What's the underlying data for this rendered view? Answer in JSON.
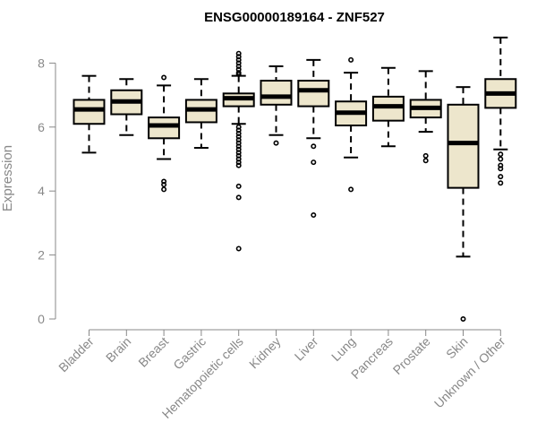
{
  "chart_data": {
    "type": "boxplot",
    "title": "ENSG00000189164 - ZNF527",
    "xlabel": "",
    "ylabel": "Expression",
    "ylim": [
      0,
      8.8
    ],
    "yticks": [
      0,
      2,
      4,
      6,
      8
    ],
    "grid": false,
    "colors": {
      "box_fill": "#ede6cc",
      "stroke": "#000000",
      "axis": "#888888",
      "label": "#888888"
    },
    "categories": [
      "Bladder",
      "Brain",
      "Breast",
      "Gastric",
      "Hematopoietic cells",
      "Kidney",
      "Liver",
      "Lung",
      "Pancreas",
      "Prostate",
      "Skin",
      "Unknown / Other"
    ],
    "boxes": [
      {
        "category": "Bladder",
        "whisker_low": 5.2,
        "q1": 6.1,
        "median": 6.55,
        "q3": 6.85,
        "whisker_high": 7.6,
        "outliers": []
      },
      {
        "category": "Brain",
        "whisker_low": 5.75,
        "q1": 6.4,
        "median": 6.8,
        "q3": 7.15,
        "whisker_high": 7.5,
        "outliers": []
      },
      {
        "category": "Breast",
        "whisker_low": 5.0,
        "q1": 5.65,
        "median": 6.05,
        "q3": 6.3,
        "whisker_high": 7.3,
        "outliers": [
          7.55,
          4.3,
          4.2,
          4.05
        ]
      },
      {
        "category": "Gastric",
        "whisker_low": 5.35,
        "q1": 6.15,
        "median": 6.55,
        "q3": 6.85,
        "whisker_high": 7.5,
        "outliers": []
      },
      {
        "category": "Hematopoietic cells",
        "whisker_low": 6.1,
        "q1": 6.65,
        "median": 6.9,
        "q3": 7.05,
        "whisker_high": 7.6,
        "outliers": [
          8.3,
          8.2,
          8.1,
          8.0,
          7.9,
          7.8,
          7.7,
          7.65,
          6.0,
          5.9,
          5.8,
          5.7,
          5.6,
          5.5,
          5.4,
          5.3,
          5.2,
          5.1,
          5.0,
          4.9,
          4.8,
          4.15,
          3.8,
          2.2
        ]
      },
      {
        "category": "Kidney",
        "whisker_low": 5.75,
        "q1": 6.7,
        "median": 6.95,
        "q3": 7.45,
        "whisker_high": 7.9,
        "outliers": [
          5.5
        ]
      },
      {
        "category": "Liver",
        "whisker_low": 5.65,
        "q1": 6.65,
        "median": 7.15,
        "q3": 7.45,
        "whisker_high": 8.1,
        "outliers": [
          5.4,
          4.9,
          3.25
        ]
      },
      {
        "category": "Lung",
        "whisker_low": 5.05,
        "q1": 6.05,
        "median": 6.45,
        "q3": 6.8,
        "whisker_high": 7.7,
        "outliers": [
          8.1,
          4.05
        ]
      },
      {
        "category": "Pancreas",
        "whisker_low": 5.4,
        "q1": 6.2,
        "median": 6.65,
        "q3": 6.95,
        "whisker_high": 7.85,
        "outliers": []
      },
      {
        "category": "Prostate",
        "whisker_low": 5.85,
        "q1": 6.3,
        "median": 6.6,
        "q3": 6.85,
        "whisker_high": 7.75,
        "outliers": [
          5.1,
          4.95
        ]
      },
      {
        "category": "Skin",
        "whisker_low": 1.95,
        "q1": 4.1,
        "median": 5.5,
        "q3": 6.7,
        "whisker_high": 7.25,
        "outliers": [
          0.0
        ]
      },
      {
        "category": "Unknown / Other",
        "whisker_low": 5.3,
        "q1": 6.6,
        "median": 7.05,
        "q3": 7.5,
        "whisker_high": 8.8,
        "outliers": [
          5.15,
          5.0,
          4.8,
          4.7,
          4.45,
          4.25
        ]
      }
    ]
  }
}
